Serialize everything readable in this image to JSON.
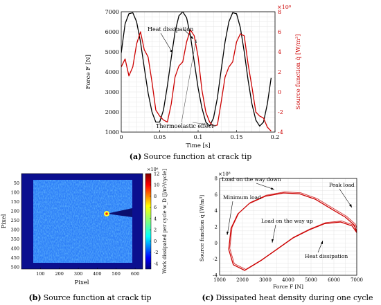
{
  "figure": {
    "panel_a": {
      "caption_letter": "(a)",
      "caption_text": "Source function at crack tip"
    },
    "panel_b": {
      "caption_letter": "(b)",
      "caption_text": "Source function at crack tip"
    },
    "panel_c": {
      "caption_letter": "(c)",
      "caption_text": "Dissipated heat density during one cycle"
    }
  },
  "chart_data": [
    {
      "type": "line",
      "xlabel": "Time [s]",
      "ylabel_left": "Force F [N]",
      "ylabel_right": "Source function q̇ [W/m³]",
      "right_exponent": "×10⁸",
      "xlim": [
        0,
        0.2
      ],
      "ylim_left": [
        1000,
        7000
      ],
      "ylim_right": [
        -4,
        8
      ],
      "xticks": [
        "0",
        "0.05",
        "0.1",
        "0.15",
        "0.2"
      ],
      "yticks_left": [
        "1000",
        "2000",
        "3000",
        "4000",
        "5000",
        "6000",
        "7000"
      ],
      "yticks_right": [
        "-4",
        "-2",
        "0",
        "2",
        "4",
        "6",
        "8"
      ],
      "grid": true,
      "annotations": [
        "Heat dissipation",
        "Thermoelastic effect"
      ],
      "series": [
        {
          "axis": "left",
          "color": "#000000",
          "x": [
            0,
            0.005,
            0.01,
            0.015,
            0.02,
            0.025,
            0.03,
            0.035,
            0.04,
            0.045,
            0.05,
            0.055,
            0.06,
            0.065,
            0.07,
            0.075,
            0.08,
            0.085,
            0.09,
            0.095,
            0.1,
            0.105,
            0.11,
            0.115,
            0.12,
            0.125,
            0.13,
            0.135,
            0.14,
            0.145,
            0.15,
            0.155,
            0.16,
            0.165,
            0.17,
            0.175,
            0.18,
            0.185,
            0.19,
            0.195
          ],
          "values": [
            4950,
            6400,
            6900,
            6950,
            6500,
            5500,
            4200,
            2950,
            2000,
            1500,
            1500,
            2100,
            3300,
            4700,
            6000,
            6800,
            7000,
            6700,
            5800,
            4500,
            3200,
            2200,
            1500,
            1300,
            1700,
            2700,
            4100,
            5500,
            6500,
            6950,
            6900,
            6200,
            5000,
            3600,
            2400,
            1600,
            1300,
            1500,
            2400,
            3700
          ]
        },
        {
          "axis": "right",
          "color": "#cc0000",
          "x": [
            0,
            0.005,
            0.01,
            0.015,
            0.02,
            0.025,
            0.03,
            0.035,
            0.04,
            0.045,
            0.05,
            0.055,
            0.06,
            0.065,
            0.07,
            0.075,
            0.08,
            0.085,
            0.09,
            0.095,
            0.1,
            0.105,
            0.11,
            0.115,
            0.12,
            0.125,
            0.13,
            0.135,
            0.14,
            0.145,
            0.15,
            0.155,
            0.16,
            0.165,
            0.17,
            0.175,
            0.18,
            0.185,
            0.19,
            0.195
          ],
          "values": [
            2.5,
            3.3,
            1.6,
            2.5,
            4.8,
            6.0,
            4.2,
            3.5,
            1.0,
            -1.8,
            -2.4,
            -2.8,
            -3.0,
            -1.2,
            1.5,
            2.6,
            3.0,
            5.0,
            6.2,
            5.6,
            3.5,
            0.2,
            -2.0,
            -3.0,
            -3.4,
            -3.3,
            -1.0,
            1.5,
            2.5,
            3.0,
            5.0,
            5.8,
            5.6,
            2.8,
            0.5,
            -2.0,
            -2.4,
            -2.6,
            -3.5,
            -3.9
          ]
        }
      ]
    },
    {
      "type": "heatmap",
      "xlabel": "Pixel",
      "ylabel": "Pixel",
      "colorbar_label": "Work dissipated per cycle w_D [J/m³/cycle]",
      "colorbar_exponent": "×10⁶",
      "xticks": [
        "100",
        "200",
        "300",
        "400",
        "500",
        "600"
      ],
      "yticks": [
        "50",
        "100",
        "150",
        "200",
        "250",
        "300",
        "350",
        "400",
        "450",
        "500"
      ],
      "cbar_ticks": [
        "12",
        "10",
        "8",
        "6",
        "4",
        "2",
        "0",
        "-2",
        "-4"
      ],
      "clim": [
        -5,
        12
      ]
    },
    {
      "type": "line",
      "xlabel": "Force F [N]",
      "ylabel": "Source function q̇ [W/m³]",
      "y_exponent": "×10⁸",
      "xlim": [
        1000,
        7000
      ],
      "ylim": [
        -4,
        8
      ],
      "xticks": [
        "1000",
        "2000",
        "3000",
        "4000",
        "5000",
        "6000",
        "7000"
      ],
      "yticks": [
        "8",
        "6",
        "4",
        "2",
        "0",
        "-2",
        "-4"
      ],
      "grid": true,
      "annotations": [
        "Load on the way down",
        "Minimum load",
        "Peak load",
        "Load on the way up",
        "Heat dissipation"
      ],
      "series": [
        {
          "color": "#cc0000",
          "x": [
            1400,
            1500,
            1800,
            2300,
            3000,
            3800,
            4500,
            5200,
            5900,
            6500,
            6900,
            7000,
            6800,
            6300,
            5600,
            4900,
            4200,
            3500,
            2800,
            2100,
            1600,
            1400
          ],
          "values": [
            -0.8,
            1.8,
            3.6,
            4.9,
            5.8,
            6.2,
            6.1,
            5.4,
            4.2,
            3.2,
            2.2,
            1.3,
            2.1,
            2.6,
            2.4,
            1.6,
            0.6,
            -0.8,
            -2.2,
            -3.4,
            -2.7,
            -0.8
          ]
        }
      ]
    }
  ]
}
